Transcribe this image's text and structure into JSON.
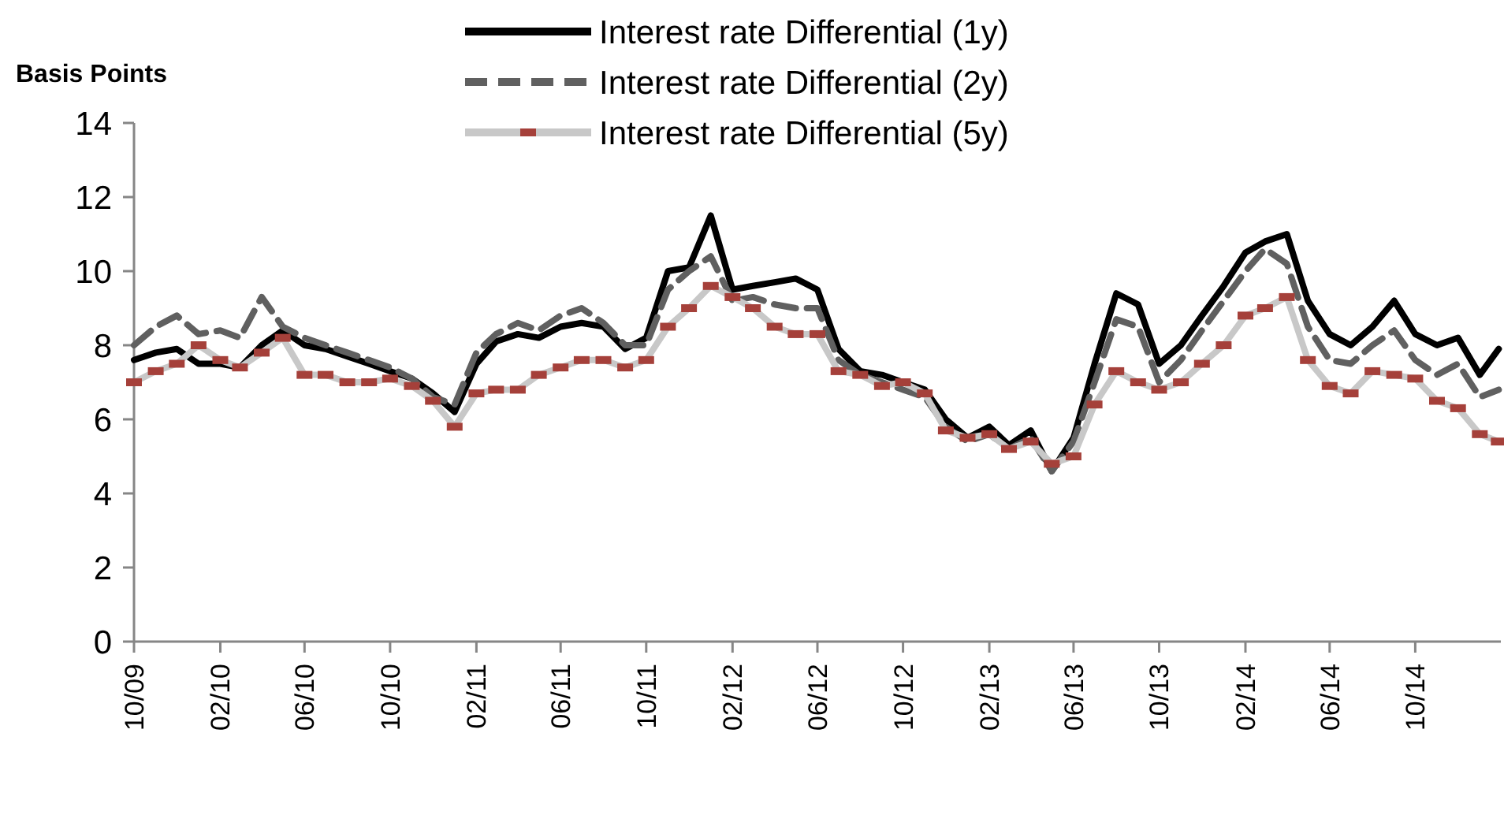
{
  "chart_data": {
    "type": "line",
    "ylabel": "Basis Points",
    "ylim": [
      0,
      14
    ],
    "yticks": [
      0,
      2,
      4,
      6,
      8,
      10,
      12,
      14
    ],
    "xlim": [
      "2009-10",
      "2015-01-31"
    ],
    "xticks": [
      {
        "value": "2009-10",
        "label": "10/09"
      },
      {
        "value": "2010-02",
        "label": "02/10"
      },
      {
        "value": "2010-06",
        "label": "06/10"
      },
      {
        "value": "2010-10",
        "label": "10/10"
      },
      {
        "value": "2011-02",
        "label": "02/11"
      },
      {
        "value": "2011-06",
        "label": "06/11"
      },
      {
        "value": "2011-10",
        "label": "10/11"
      },
      {
        "value": "2012-02",
        "label": "02/12"
      },
      {
        "value": "2012-06",
        "label": "06/12"
      },
      {
        "value": "2012-10",
        "label": "10/12"
      },
      {
        "value": "2013-02",
        "label": "02/13"
      },
      {
        "value": "2013-06",
        "label": "06/13"
      },
      {
        "value": "2013-10",
        "label": "10/13"
      },
      {
        "value": "2014-02",
        "label": "02/14"
      },
      {
        "value": "2014-06",
        "label": "06/14"
      },
      {
        "value": "2014-10",
        "label": "10/14"
      }
    ],
    "x": [
      "2009-10",
      "2009-11",
      "2009-12",
      "2010-01",
      "2010-02",
      "2010-03",
      "2010-04",
      "2010-05",
      "2010-06",
      "2010-07",
      "2010-08",
      "2010-09",
      "2010-10",
      "2010-11",
      "2010-12",
      "2011-01",
      "2011-02",
      "2011-03",
      "2011-04",
      "2011-05",
      "2011-06",
      "2011-07",
      "2011-08",
      "2011-09",
      "2011-10",
      "2011-11",
      "2011-12",
      "2012-01",
      "2012-02",
      "2012-03",
      "2012-04",
      "2012-05",
      "2012-06",
      "2012-07",
      "2012-08",
      "2012-09",
      "2012-10",
      "2012-11",
      "2012-12",
      "2013-01",
      "2013-02",
      "2013-03",
      "2013-04",
      "2013-05",
      "2013-06",
      "2013-07",
      "2013-08",
      "2013-09",
      "2013-10",
      "2013-11",
      "2013-12",
      "2014-01",
      "2014-02",
      "2014-03",
      "2014-04",
      "2014-05",
      "2014-06",
      "2014-07",
      "2014-08",
      "2014-09",
      "2014-10",
      "2014-11",
      "2014-12",
      "2015-01",
      "2015-01-28"
    ],
    "legend": "top",
    "grid": false,
    "series": [
      {
        "name": "Interest rate Differential (1y)",
        "color": "#000000",
        "line_style": "solid",
        "marker": "none",
        "values": [
          7.6,
          7.8,
          7.9,
          7.5,
          7.5,
          7.4,
          8.0,
          8.4,
          8.0,
          7.9,
          7.7,
          7.5,
          7.3,
          7.1,
          6.7,
          6.2,
          7.5,
          8.1,
          8.3,
          8.2,
          8.5,
          8.6,
          8.5,
          7.9,
          8.2,
          10.0,
          10.1,
          11.5,
          9.5,
          9.6,
          9.7,
          9.8,
          9.5,
          7.9,
          7.3,
          7.2,
          7.0,
          6.8,
          6.0,
          5.5,
          5.8,
          5.3,
          5.7,
          4.6,
          5.5,
          7.5,
          9.4,
          9.1,
          7.5,
          8.0,
          8.8,
          9.6,
          10.5,
          10.8,
          11.0,
          9.2,
          8.3,
          8.0,
          8.5,
          9.2,
          8.3,
          8.0,
          8.2,
          7.2,
          7.9
        ]
      },
      {
        "name": "Interest rate Differential (2y)",
        "color": "#606060",
        "line_style": "dashed",
        "marker": "none",
        "values": [
          8.0,
          8.5,
          8.8,
          8.3,
          8.4,
          8.2,
          9.3,
          8.5,
          8.2,
          8.0,
          7.8,
          7.6,
          7.4,
          7.1,
          6.6,
          6.4,
          7.8,
          8.3,
          8.6,
          8.4,
          8.8,
          9.0,
          8.6,
          8.0,
          8.0,
          9.5,
          10.0,
          10.4,
          9.2,
          9.3,
          9.1,
          9.0,
          9.0,
          7.6,
          7.2,
          7.0,
          6.8,
          6.6,
          5.8,
          5.4,
          5.6,
          5.2,
          5.5,
          4.6,
          5.4,
          7.0,
          8.7,
          8.5,
          7.0,
          7.6,
          8.4,
          9.2,
          10.0,
          10.6,
          10.2,
          8.5,
          7.6,
          7.5,
          8.0,
          8.4,
          7.6,
          7.2,
          7.5,
          6.6,
          6.8
        ]
      },
      {
        "name": "Interest rate Differential (5y)",
        "color": "#a5403a",
        "line_style": "solid",
        "marker": "square",
        "values": [
          7.0,
          7.3,
          7.5,
          8.0,
          7.6,
          7.4,
          7.8,
          8.2,
          7.2,
          7.2,
          7.0,
          7.0,
          7.1,
          6.9,
          6.5,
          5.8,
          6.7,
          6.8,
          6.8,
          7.2,
          7.4,
          7.6,
          7.6,
          7.4,
          7.6,
          8.5,
          9.0,
          9.6,
          9.3,
          9.0,
          8.5,
          8.3,
          8.3,
          7.3,
          7.2,
          6.9,
          7.0,
          6.7,
          5.7,
          5.5,
          5.6,
          5.2,
          5.4,
          4.8,
          5.0,
          6.4,
          7.3,
          7.0,
          6.8,
          7.0,
          7.5,
          8.0,
          8.8,
          9.0,
          9.3,
          7.6,
          6.9,
          6.7,
          7.3,
          7.2,
          7.1,
          6.5,
          6.3,
          5.6,
          5.4
        ]
      }
    ]
  }
}
